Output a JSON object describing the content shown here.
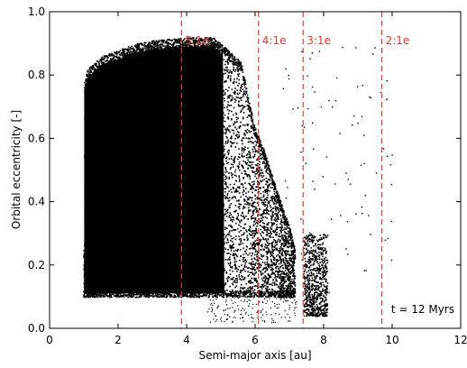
{
  "chart_data": {
    "type": "scatter",
    "title": "",
    "xlabel": "Semi-major axis [au]",
    "ylabel": "Orbital eccentricity [-]",
    "xlim": [
      0,
      12
    ],
    "ylim": [
      0,
      1
    ],
    "xticks": [
      "0",
      "2",
      "4",
      "6",
      "8",
      "10",
      "12"
    ],
    "yticks": [
      "0.0",
      "0.2",
      "0.4",
      "0.6",
      "0.8",
      "1.0"
    ],
    "grid": false,
    "point_color": "#000000",
    "resonance_color": "#e8392b",
    "resonances": [
      {
        "label": "5:1e",
        "a": 3.85
      },
      {
        "label": "4:1e",
        "a": 6.1
      },
      {
        "label": "3:1e",
        "a": 7.4
      },
      {
        "label": "2:1e",
        "a": 9.7
      }
    ],
    "annotation": "t = 12 Myrs",
    "distribution": {
      "main_body_a_range": [
        0.98,
        7.15
      ],
      "main_body_e_floor": 0.1,
      "upper_envelope": [
        [
          1.0,
          0.78
        ],
        [
          1.1,
          0.82
        ],
        [
          1.5,
          0.86
        ],
        [
          2.0,
          0.88
        ],
        [
          2.5,
          0.9
        ],
        [
          3.0,
          0.91
        ],
        [
          4.0,
          0.92
        ],
        [
          4.8,
          0.92
        ],
        [
          5.2,
          0.88
        ],
        [
          5.6,
          0.84
        ],
        [
          5.8,
          0.72
        ],
        [
          6.0,
          0.63
        ],
        [
          6.2,
          0.58
        ],
        [
          6.5,
          0.48
        ],
        [
          6.8,
          0.38
        ],
        [
          7.0,
          0.32
        ],
        [
          7.15,
          0.25
        ]
      ],
      "clump": {
        "a_range": [
          7.4,
          8.1
        ],
        "e_range": [
          0.04,
          0.3
        ]
      }
    }
  }
}
